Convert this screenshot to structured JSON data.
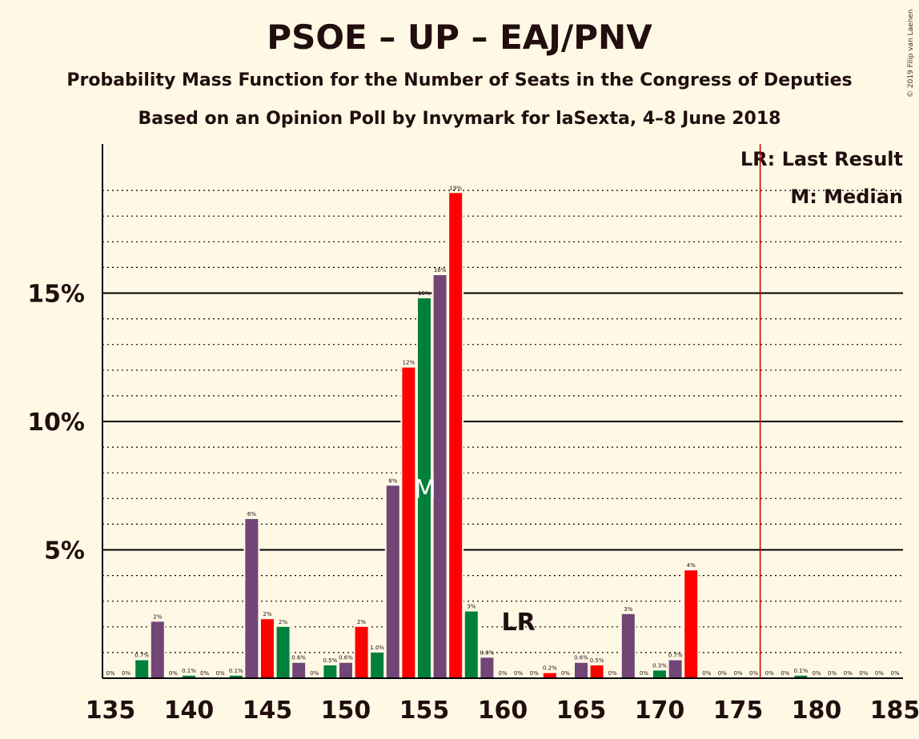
{
  "title": "PSOE – UP – EAJ/PNV",
  "subtitle": "Probability Mass Function for the Number of Seats in the Congress of Deputies",
  "subtitle2": "Based on an Opinion Poll by Invymark for laSexta, 4–8 June 2018",
  "copyright": "© 2019 Filip van Laenen",
  "legend": {
    "last_result": "LR: Last Result",
    "median": "M: Median"
  },
  "colors": {
    "background": "#FFF8E5",
    "purple": "#714575",
    "red": "#FF0000",
    "green": "#00803A",
    "majority_line": "#C00000"
  },
  "chart_data": {
    "type": "bar",
    "x": [
      135,
      136,
      137,
      138,
      139,
      140,
      141,
      142,
      143,
      144,
      145,
      146,
      147,
      148,
      149,
      150,
      151,
      152,
      153,
      154,
      155,
      156,
      157,
      158,
      159,
      160,
      161,
      162,
      163,
      164,
      165,
      166,
      167,
      168,
      169,
      170,
      171,
      172,
      173,
      174,
      175,
      176,
      177,
      178,
      179,
      180,
      181,
      182,
      183,
      184,
      185
    ],
    "values": [
      0,
      0,
      0.7,
      2.2,
      0,
      0.1,
      0,
      0,
      0.1,
      6.2,
      2.3,
      2.0,
      0.6,
      0,
      0.5,
      0.6,
      2.0,
      1.0,
      7.5,
      12.1,
      14.8,
      15.7,
      18.9,
      2.6,
      0.8,
      0,
      0,
      0,
      0.2,
      0,
      0.6,
      0.5,
      0,
      2.5,
      0,
      0.3,
      0.7,
      4.2,
      0,
      0,
      0,
      0,
      0,
      0,
      0.1,
      0,
      0,
      0,
      0,
      0,
      0
    ],
    "labels": [
      "0%",
      "0%",
      "0.7%",
      "2%",
      "0%",
      "0.1%",
      "0%",
      "0%",
      "0.1%",
      "6%",
      "2%",
      "2%",
      "0.6%",
      "0%",
      "0.5%",
      "0.6%",
      "2%",
      "1.0%",
      "8%",
      "12%",
      "15%",
      "16%",
      "19%",
      "3%",
      "0.8%",
      "0%",
      "0%",
      "0%",
      "0.2%",
      "0%",
      "0.6%",
      "0.5%",
      "0%",
      "3%",
      "0%",
      "0.3%",
      "0.7%",
      "4%",
      "0%",
      "0%",
      "0%",
      "0%",
      "0%",
      "0%",
      "0.1%",
      "0%",
      "0%",
      "0%",
      "0%",
      "0%",
      "0%"
    ],
    "color_cycle": [
      "purple",
      "red",
      "green"
    ],
    "x_ticks": [
      "135",
      "140",
      "145",
      "150",
      "155",
      "160",
      "165",
      "170",
      "175",
      "180",
      "185"
    ],
    "y_ticks": [
      "5%",
      "10%",
      "15%"
    ],
    "ylim": [
      0,
      20.5
    ],
    "median": {
      "seat": 155,
      "label": "M"
    },
    "last_result": {
      "seat": 161,
      "label": "LR"
    },
    "majority_seat": 176
  }
}
